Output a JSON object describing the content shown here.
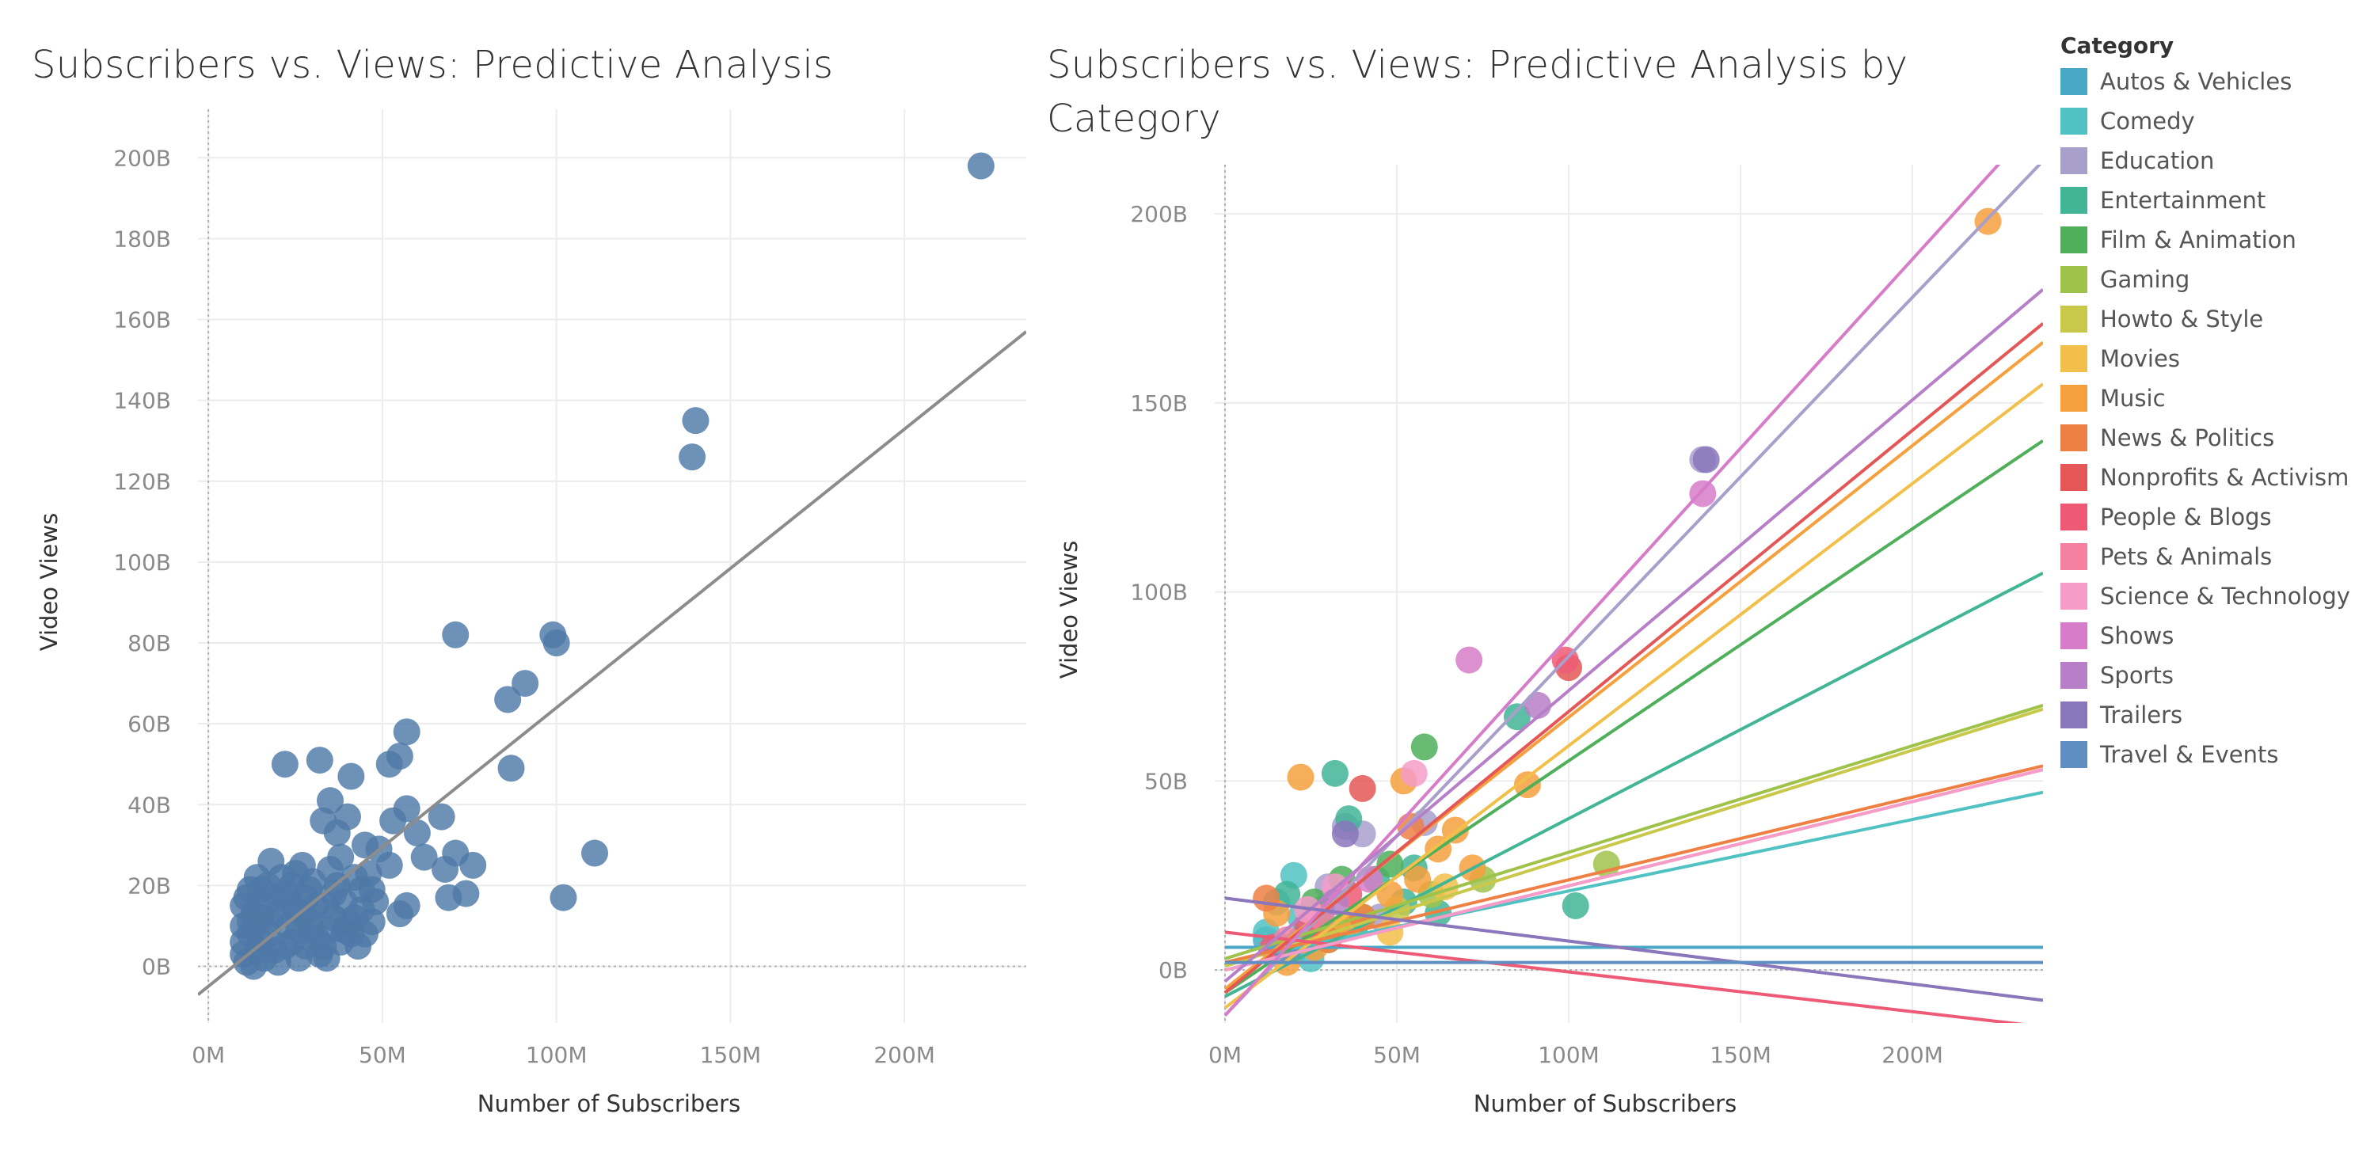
{
  "chart_data": [
    {
      "type": "scatter",
      "title": "Subscribers vs. Views: Predictive Analysis",
      "xlabel": "Number of Subscribers",
      "ylabel": "Video Views",
      "xlim": [
        -3,
        235
      ],
      "ylim": [
        -14,
        212
      ],
      "x_ticks": [
        0,
        50,
        100,
        150,
        200
      ],
      "x_tick_labels": [
        "0M",
        "50M",
        "100M",
        "150M",
        "200M"
      ],
      "y_ticks": [
        0,
        20,
        40,
        60,
        80,
        100,
        120,
        140,
        160,
        180,
        200
      ],
      "y_tick_labels": [
        "0B",
        "20B",
        "40B",
        "60B",
        "80B",
        "100B",
        "120B",
        "140B",
        "160B",
        "180B",
        "200B"
      ],
      "grid": true,
      "point_color": "#4e79a7",
      "trend_color": "#8c8c8c",
      "trend_line": {
        "x": [
          -3,
          235
        ],
        "y": [
          -7,
          157
        ]
      },
      "points": [
        [
          222,
          198
        ],
        [
          140,
          135
        ],
        [
          139,
          126
        ],
        [
          71,
          82
        ],
        [
          99,
          82
        ],
        [
          100,
          80
        ],
        [
          91,
          70
        ],
        [
          86,
          66
        ],
        [
          57,
          58
        ],
        [
          87,
          49
        ],
        [
          111,
          28
        ],
        [
          102,
          17
        ],
        [
          55,
          52
        ],
        [
          52,
          50
        ],
        [
          32,
          51
        ],
        [
          22,
          50
        ],
        [
          41,
          47
        ],
        [
          35,
          41
        ],
        [
          57,
          39
        ],
        [
          53,
          36
        ],
        [
          67,
          37
        ],
        [
          60,
          33
        ],
        [
          71,
          28
        ],
        [
          76,
          25
        ],
        [
          62,
          27
        ],
        [
          68,
          24
        ],
        [
          74,
          18
        ],
        [
          69,
          17
        ],
        [
          57,
          15
        ],
        [
          55,
          13
        ],
        [
          49,
          29
        ],
        [
          52,
          25
        ],
        [
          45,
          30
        ],
        [
          40,
          37
        ],
        [
          37,
          33
        ],
        [
          33,
          36
        ],
        [
          42,
          22
        ],
        [
          47,
          19
        ],
        [
          38,
          27
        ],
        [
          44,
          14
        ],
        [
          41,
          8
        ],
        [
          43,
          5
        ],
        [
          36,
          12
        ],
        [
          30,
          21
        ],
        [
          27,
          25
        ],
        [
          18,
          26
        ],
        [
          22,
          18
        ],
        [
          25,
          14
        ],
        [
          12,
          19
        ],
        [
          15,
          19
        ],
        [
          10,
          15
        ],
        [
          10,
          10
        ],
        [
          10,
          6
        ],
        [
          10,
          3
        ],
        [
          11,
          1
        ],
        [
          13,
          0
        ],
        [
          15,
          12
        ],
        [
          17,
          8
        ],
        [
          19,
          4
        ],
        [
          20,
          1
        ],
        [
          23,
          10
        ],
        [
          24,
          6
        ],
        [
          26,
          2
        ],
        [
          28,
          17
        ],
        [
          29,
          11
        ],
        [
          31,
          7
        ],
        [
          32,
          3
        ],
        [
          34,
          15
        ],
        [
          35,
          9
        ],
        [
          37,
          20
        ],
        [
          39,
          16
        ],
        [
          40,
          11
        ],
        [
          14,
          22
        ],
        [
          16,
          15
        ],
        [
          18,
          11
        ],
        [
          21,
          22
        ],
        [
          24,
          20
        ],
        [
          27,
          13
        ],
        [
          30,
          9
        ],
        [
          33,
          5
        ],
        [
          35,
          24
        ],
        [
          38,
          6
        ],
        [
          42,
          12
        ],
        [
          46,
          23
        ],
        [
          12,
          8
        ],
        [
          13,
          13
        ],
        [
          14,
          4
        ],
        [
          16,
          2
        ],
        [
          19,
          17
        ],
        [
          22,
          5
        ],
        [
          25,
          23
        ],
        [
          28,
          5
        ],
        [
          31,
          15
        ],
        [
          44,
          19
        ],
        [
          48,
          16
        ],
        [
          12,
          11
        ],
        [
          17,
          20
        ],
        [
          20,
          13
        ],
        [
          23,
          16
        ],
        [
          26,
          9
        ],
        [
          29,
          19
        ],
        [
          34,
          2
        ],
        [
          36,
          18
        ],
        [
          39,
          9
        ],
        [
          45,
          8
        ],
        [
          47,
          11
        ],
        [
          11,
          17
        ],
        [
          15,
          6
        ]
      ]
    },
    {
      "type": "scatter",
      "title": "Subscribers vs. Views: Predictive Analysis by Category",
      "xlabel": "Number of Subscribers",
      "ylabel": "Video Views",
      "xlim": [
        -3,
        238
      ],
      "ylim": [
        -14,
        213
      ],
      "x_ticks": [
        0,
        50,
        100,
        150,
        200
      ],
      "x_tick_labels": [
        "0M",
        "50M",
        "100M",
        "150M",
        "200M"
      ],
      "y_ticks": [
        0,
        50,
        100,
        150,
        200
      ],
      "y_tick_labels": [
        "0B",
        "50B",
        "100B",
        "150B",
        "200B"
      ],
      "grid": true,
      "legend_placement": "right",
      "legend_title": "Category",
      "series": [
        {
          "name": "Autos & Vehicles",
          "color": "#4aa8c7",
          "trend": [
            6,
            6
          ],
          "points": [
            [
              12,
              8
            ],
            [
              20,
              5
            ]
          ]
        },
        {
          "name": "Comedy",
          "color": "#50c2c4",
          "trend": [
            2,
            47
          ],
          "points": [
            [
              20,
              25
            ],
            [
              12,
              10
            ],
            [
              15,
              18
            ],
            [
              18,
              6
            ],
            [
              22,
              14
            ],
            [
              25,
              3
            ],
            [
              28,
              12
            ]
          ]
        },
        {
          "name": "Education",
          "color": "#a89fcb",
          "trend": [
            -12,
            214
          ],
          "points": [
            [
              139,
              135
            ],
            [
              40,
              36
            ],
            [
              35,
              38
            ],
            [
              58,
              39
            ],
            [
              30,
              22
            ],
            [
              45,
              14
            ],
            [
              25,
              10
            ]
          ]
        },
        {
          "name": "Entertainment",
          "color": "#41b596",
          "trend": [
            -7,
            105
          ],
          "points": [
            [
              85,
              67
            ],
            [
              102,
              17
            ],
            [
              32,
              52
            ],
            [
              36,
              40
            ],
            [
              52,
              18
            ],
            [
              44,
              24
            ],
            [
              28,
              16
            ],
            [
              22,
              8
            ],
            [
              18,
              20
            ],
            [
              38,
              12
            ],
            [
              55,
              27
            ],
            [
              62,
              15
            ]
          ]
        },
        {
          "name": "Film & Animation",
          "color": "#4faf5a",
          "trend": [
            -6,
            140
          ],
          "points": [
            [
              58,
              59
            ],
            [
              48,
              28
            ],
            [
              34,
              24
            ],
            [
              26,
              18
            ],
            [
              30,
              10
            ]
          ]
        },
        {
          "name": "Gaming",
          "color": "#9fc24b",
          "trend": [
            3,
            70
          ],
          "points": [
            [
              111,
              28
            ],
            [
              75,
              24
            ],
            [
              60,
              20
            ],
            [
              40,
              14
            ],
            [
              30,
              8
            ]
          ]
        },
        {
          "name": "Howto & Style",
          "color": "#c8c84a",
          "trend": [
            1,
            69
          ],
          "points": [
            [
              50,
              16
            ],
            [
              34,
              11
            ]
          ]
        },
        {
          "name": "Movies",
          "color": "#f2c04a",
          "trend": [
            -10,
            155
          ],
          "points": [
            [
              64,
              22
            ],
            [
              48,
              10
            ]
          ]
        },
        {
          "name": "Music",
          "color": "#f6a03d",
          "trend": [
            -5,
            166
          ],
          "points": [
            [
              222,
              198
            ],
            [
              22,
              51
            ],
            [
              52,
              50
            ],
            [
              88,
              49
            ],
            [
              67,
              37
            ],
            [
              72,
              27
            ],
            [
              62,
              32
            ],
            [
              56,
              24
            ],
            [
              48,
              20
            ],
            [
              36,
              12
            ],
            [
              26,
              6
            ],
            [
              15,
              15
            ],
            [
              18,
              2
            ]
          ]
        },
        {
          "name": "News & Politics",
          "color": "#ef8044",
          "trend": [
            2,
            54
          ],
          "points": [
            [
              54,
              38
            ],
            [
              40,
              14
            ],
            [
              30,
              8
            ],
            [
              12,
              19
            ]
          ]
        },
        {
          "name": "Nonprofits & Activism",
          "color": "#e45756",
          "trend": [
            -6,
            171
          ],
          "points": [
            [
              100,
              80
            ],
            [
              40,
              48
            ]
          ]
        },
        {
          "name": "People & Blogs",
          "color": "#ee5a75",
          "trend": [
            10,
            -15
          ],
          "points": [
            [
              99,
              82
            ],
            [
              36,
              20
            ],
            [
              24,
              12
            ],
            [
              14,
              6
            ]
          ]
        },
        {
          "name": "Pets & Animals",
          "color": "#f580a0",
          "trend": [
            0,
            53
          ],
          "points": [
            [
              28,
              14
            ],
            [
              18,
              8
            ]
          ]
        },
        {
          "name": "Science & Technology",
          "color": "#f59cc8",
          "trend": [
            0,
            53
          ],
          "points": [
            [
              55,
              52
            ],
            [
              32,
              22
            ],
            [
              24,
              16
            ]
          ]
        },
        {
          "name": "Shows",
          "color": "#d77cc8",
          "trend": [
            -12,
            226
          ],
          "points": [
            [
              139,
              126
            ],
            [
              71,
              82
            ],
            [
              42,
              24
            ]
          ]
        },
        {
          "name": "Sports",
          "color": "#b77fc7",
          "trend": [
            -3,
            180
          ],
          "points": [
            [
              91,
              70
            ],
            [
              32,
              18
            ]
          ]
        },
        {
          "name": "Trailers",
          "color": "#8a76bb",
          "trend": [
            19,
            -8
          ],
          "points": [
            [
              140,
              135
            ],
            [
              35,
              36
            ]
          ]
        },
        {
          "name": "Travel & Events",
          "color": "#5f8fc2",
          "trend": [
            2,
            2
          ],
          "points": [
            [
              18,
              5
            ]
          ]
        }
      ]
    }
  ]
}
